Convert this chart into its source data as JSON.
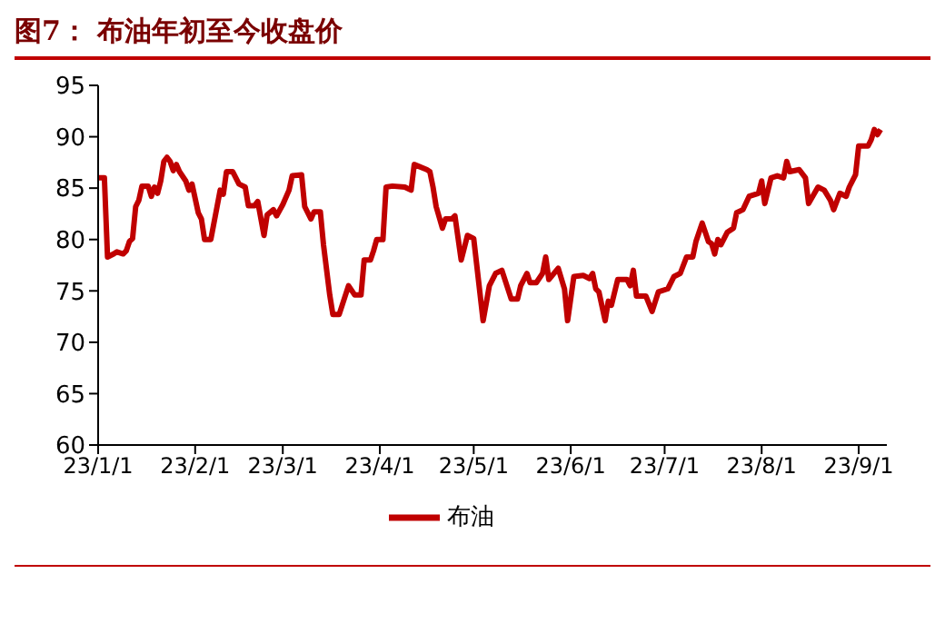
{
  "chart_data": {
    "type": "line",
    "title": "图7： 布油年初至今收盘价",
    "x": [
      "--01-01",
      "--01-03",
      "--01-04",
      "--01-06",
      "--01-07",
      "--01-09",
      "--01-10",
      "--01-11",
      "--01-12",
      "--01-13",
      "--01-14",
      "--01-15",
      "--01-17",
      "--01-18",
      "--01-19",
      "--01-20",
      "--01-21",
      "--01-22",
      "--01-23",
      "--01-24",
      "--01-25",
      "--01-26",
      "--01-27",
      "--01-29",
      "--01-30",
      "--01-31",
      "--02-02",
      "--02-03",
      "--02-04",
      "--02-06",
      "--02-08",
      "--02-09",
      "--02-10",
      "--02-11",
      "--02-13",
      "--02-15",
      "--02-17",
      "--02-18",
      "--02-20",
      "--02-21",
      "--02-23",
      "--02-24",
      "--02-26",
      "--02-27",
      "--03-01",
      "--03-03",
      "--03-04",
      "--03-07",
      "--03-08",
      "--03-10",
      "--03-11",
      "--03-13",
      "--03-14",
      "--03-16",
      "--03-17",
      "--03-19",
      "--03-22",
      "--03-24",
      "--03-26",
      "--03-27",
      "--03-29",
      "--03-30",
      "--03-31",
      "--04-02",
      "--04-03",
      "--04-05",
      "--04-09",
      "--04-11",
      "--04-12",
      "--04-16",
      "--04-17",
      "--04-18",
      "--04-19",
      "--04-21",
      "--04-22",
      "--04-24",
      "--04-25",
      "--04-27",
      "--04-29",
      "--05-01",
      "--05-04",
      "--05-06",
      "--05-08",
      "--05-10",
      "--05-13",
      "--05-15",
      "--05-16",
      "--05-18",
      "--05-19",
      "--05-21",
      "--05-23",
      "--05-24",
      "--05-25",
      "--05-28",
      "--05-30",
      "--05-31",
      "--06-02",
      "--06-05",
      "--06-07",
      "--06-08",
      "--06-09",
      "--06-10",
      "--06-12",
      "--06-13",
      "--06-14",
      "--06-16",
      "--06-19",
      "--06-20",
      "--06-21",
      "--06-22",
      "--06-25",
      "--06-27",
      "--06-29",
      "--07-02",
      "--07-04",
      "--07-06",
      "--07-08",
      "--07-10",
      "--07-11",
      "--07-13",
      "--07-15",
      "--07-16",
      "--07-17",
      "--07-18",
      "--07-19",
      "--07-21",
      "--07-23",
      "--07-24",
      "--07-26",
      "--07-28",
      "--07-31",
      "--08-01",
      "--08-02",
      "--08-04",
      "--08-06",
      "--08-08",
      "--08-09",
      "--08-10",
      "--08-13",
      "--08-15",
      "--08-16",
      "--08-19",
      "--08-21",
      "--08-23",
      "--08-24",
      "--08-26",
      "--08-28",
      "--08-29",
      "--08-31",
      "--09-01",
      "--09-04",
      "--09-05",
      "--09-06",
      "--09-07",
      "--09-08"
    ],
    "series": [
      {
        "name": "布油",
        "color": "#c00000",
        "values": [
          86.0,
          86.0,
          78.3,
          78.6,
          78.8,
          78.6,
          78.9,
          79.8,
          80.1,
          83.2,
          83.8,
          85.2,
          85.2,
          84.2,
          85.1,
          84.5,
          85.7,
          87.6,
          88.0,
          87.6,
          86.7,
          87.3,
          86.6,
          85.7,
          84.8,
          85.4,
          82.6,
          82.0,
          80.0,
          80.0,
          83.2,
          84.8,
          84.4,
          86.6,
          86.6,
          85.4,
          85.1,
          83.3,
          83.3,
          83.7,
          80.4,
          82.4,
          82.9,
          82.3,
          83.4,
          84.8,
          86.2,
          86.3,
          83.2,
          82.0,
          82.7,
          82.7,
          79.5,
          74.6,
          72.7,
          72.7,
          75.5,
          74.6,
          74.6,
          78.0,
          78.0,
          78.9,
          80.0,
          80.0,
          85.1,
          85.2,
          85.1,
          84.8,
          87.3,
          86.8,
          86.6,
          85.1,
          83.2,
          81.1,
          82.0,
          82.0,
          82.3,
          78.0,
          80.4,
          80.1,
          72.1,
          75.5,
          76.7,
          77.0,
          74.2,
          74.2,
          75.5,
          76.7,
          75.8,
          75.8,
          76.7,
          78.3,
          76.1,
          77.2,
          75.2,
          72.1,
          76.4,
          76.5,
          76.2,
          76.7,
          75.2,
          74.9,
          72.1,
          74.0,
          73.6,
          76.1,
          76.1,
          75.5,
          77.0,
          74.5,
          74.5,
          73.0,
          74.9,
          75.2,
          76.4,
          76.7,
          78.3,
          78.3,
          79.8,
          81.6,
          79.8,
          79.6,
          78.6,
          80.0,
          79.5,
          80.7,
          81.1,
          82.6,
          82.9,
          84.2,
          84.5,
          85.7,
          83.5,
          86.0,
          86.2,
          86.0,
          87.6,
          86.6,
          86.8,
          86.0,
          83.5,
          85.1,
          84.8,
          83.8,
          82.9,
          84.5,
          84.2,
          85.1,
          86.3,
          89.1,
          89.1,
          89.7,
          90.7,
          90.2,
          90.7
        ]
      }
    ],
    "xlim": [
      "--01-01",
      "--09-10"
    ],
    "xticks": [
      {
        "value": "--01-01",
        "label": "23/1/1"
      },
      {
        "value": "--02-01",
        "label": "23/2/1"
      },
      {
        "value": "--03-01",
        "label": "23/3/1"
      },
      {
        "value": "--04-01",
        "label": "23/4/1"
      },
      {
        "value": "--05-01",
        "label": "23/5/1"
      },
      {
        "value": "--06-01",
        "label": "23/6/1"
      },
      {
        "value": "--07-01",
        "label": "23/7/1"
      },
      {
        "value": "--08-01",
        "label": "23/8/1"
      },
      {
        "value": "--09-01",
        "label": "23/9/1"
      }
    ],
    "ylim": [
      60,
      95
    ],
    "yticks": [
      60,
      65,
      70,
      75,
      80,
      85,
      90,
      95
    ],
    "legend": "bottom",
    "marker": "none",
    "line_style": "solid"
  }
}
